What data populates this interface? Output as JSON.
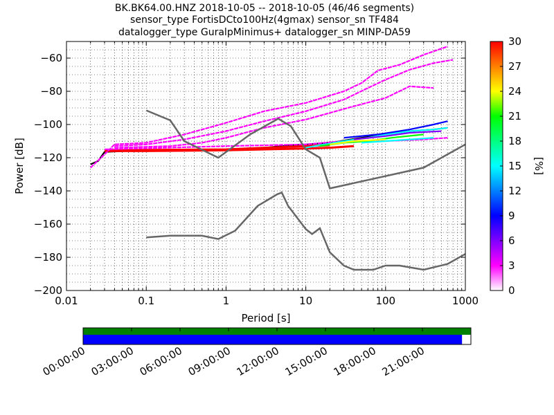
{
  "title_lines": [
    "BK.BK64.00.HNZ   2018-10-05 -- 2018-10-05  (46/46 segments)",
    "sensor_type FortisDCto100Hz(4gmax) sensor_sn TF484",
    "datalogger_type GuralpMinimus+ datalogger_sn MINP-DA59"
  ],
  "chart_data": {
    "type": "heatmap",
    "xlabel": "Period [s]",
    "ylabel": "Power [dB]",
    "x_scale": "log",
    "xlim": [
      0.01,
      1000
    ],
    "ylim": [
      -200,
      -50
    ],
    "x_ticks": [
      0.01,
      0.1,
      1,
      10,
      100,
      1000
    ],
    "x_tick_labels": [
      "0.01",
      "0.1",
      "1",
      "10",
      "100",
      "1000"
    ],
    "y_ticks": [
      -200,
      -180,
      -160,
      -140,
      -120,
      -100,
      -80,
      -60
    ],
    "y_tick_labels": [
      "−200",
      "−180",
      "−160",
      "−140",
      "−120",
      "−100",
      "−80",
      "−60"
    ],
    "grid": "dotted",
    "colorbar": {
      "label": "[%]",
      "range": [
        0,
        30
      ],
      "ticks": [
        0,
        3,
        6,
        9,
        12,
        15,
        18,
        21,
        24,
        27,
        30
      ],
      "tick_labels": [
        "0",
        "3",
        "6",
        "9",
        "12",
        "15",
        "18",
        "21",
        "24",
        "27",
        "30"
      ],
      "colors": [
        "#ffffff",
        "#ff00ff",
        "#8000ff",
        "#0000ff",
        "#0080ff",
        "#00ffff",
        "#00ff80",
        "#00ff00",
        "#ffff00",
        "#ff8000",
        "#ff0000"
      ]
    },
    "model_curves": [
      {
        "name": "",
        "color": "#666666",
        "points": [
          [
            0.1,
            -91.5
          ],
          [
            0.2,
            -97.5
          ],
          [
            0.3,
            -110
          ],
          [
            0.8,
            -120
          ],
          [
            2,
            -106
          ],
          [
            4.5,
            -96.5
          ],
          [
            6.5,
            -101
          ],
          [
            10,
            -115
          ],
          [
            15,
            -120
          ],
          [
            20,
            -138.5
          ],
          [
            300,
            -126
          ],
          [
            1000,
            -112
          ]
        ]
      },
      {
        "name": "",
        "color": "#666666",
        "points": [
          [
            0.1,
            -168
          ],
          [
            0.2,
            -167
          ],
          [
            0.5,
            -167
          ],
          [
            0.8,
            -169
          ],
          [
            1.3,
            -164
          ],
          [
            2.5,
            -149
          ],
          [
            4.4,
            -142
          ],
          [
            5,
            -141
          ],
          [
            6,
            -149
          ],
          [
            10,
            -163
          ],
          [
            12,
            -166
          ],
          [
            15,
            -162.5
          ],
          [
            20,
            -177
          ],
          [
            30,
            -185
          ],
          [
            40,
            -187.5
          ],
          [
            70,
            -187.5
          ],
          [
            100,
            -185
          ],
          [
            150,
            -185
          ],
          [
            300,
            -187.5
          ],
          [
            600,
            -184
          ],
          [
            1000,
            -178
          ]
        ]
      }
    ],
    "psd_traces": [
      {
        "color": "#000000",
        "points": [
          [
            0.02,
            -124
          ],
          [
            0.025,
            -122
          ],
          [
            0.03,
            -116.5
          ],
          [
            0.1,
            -115.5
          ],
          [
            1,
            -115
          ],
          [
            3,
            -114
          ],
          [
            5,
            -113
          ],
          [
            10,
            -112
          ],
          [
            20,
            -111
          ],
          [
            50,
            -108
          ],
          [
            100,
            -106
          ],
          [
            200,
            -104
          ],
          [
            400,
            -103
          ],
          [
            600,
            -102
          ]
        ]
      },
      {
        "color": "#ff0000",
        "points": [
          [
            0.03,
            -116
          ],
          [
            0.1,
            -116
          ],
          [
            1,
            -115.5
          ],
          [
            3,
            -115
          ],
          [
            10,
            -114.5
          ],
          [
            20,
            -114
          ],
          [
            40,
            -113
          ]
        ]
      },
      {
        "color": "#ff0000",
        "points": [
          [
            0.03,
            -115.5
          ],
          [
            1,
            -115
          ],
          [
            10,
            -113
          ],
          [
            20,
            -112.5
          ]
        ]
      },
      {
        "color": "#ff00ff",
        "points": [
          [
            0.02,
            -126
          ],
          [
            0.03,
            -118
          ],
          [
            0.04,
            -112
          ],
          [
            0.1,
            -111
          ],
          [
            0.3,
            -106
          ],
          [
            1,
            -99
          ],
          [
            3,
            -92
          ],
          [
            10,
            -87
          ],
          [
            30,
            -80
          ],
          [
            50,
            -75
          ],
          [
            80,
            -67.5
          ],
          [
            150,
            -64
          ],
          [
            300,
            -58
          ],
          [
            600,
            -53
          ]
        ]
      },
      {
        "color": "#ff00ff",
        "points": [
          [
            0.04,
            -113
          ],
          [
            0.1,
            -112
          ],
          [
            0.3,
            -109
          ],
          [
            1,
            -104
          ],
          [
            3,
            -98
          ],
          [
            10,
            -92
          ],
          [
            30,
            -85
          ],
          [
            60,
            -78
          ],
          [
            100,
            -73
          ],
          [
            200,
            -67
          ],
          [
            400,
            -63
          ],
          [
            700,
            -61
          ]
        ]
      },
      {
        "color": "#ff00ff",
        "points": [
          [
            0.04,
            -114
          ],
          [
            0.2,
            -113
          ],
          [
            0.5,
            -111
          ],
          [
            1,
            -108
          ],
          [
            3,
            -102
          ],
          [
            10,
            -97
          ],
          [
            20,
            -93
          ],
          [
            40,
            -89
          ],
          [
            100,
            -84
          ],
          [
            200,
            -77
          ],
          [
            400,
            -78
          ]
        ]
      },
      {
        "color": "#ff00ff",
        "points": [
          [
            0.03,
            -115
          ],
          [
            1,
            -113
          ],
          [
            10,
            -112
          ],
          [
            30,
            -110
          ],
          [
            100,
            -110
          ],
          [
            300,
            -109
          ],
          [
            600,
            -108
          ]
        ]
      },
      {
        "color": "#00ffff",
        "points": [
          [
            10,
            -114
          ],
          [
            30,
            -110
          ],
          [
            60,
            -108
          ],
          [
            100,
            -106
          ],
          [
            200,
            -104
          ],
          [
            400,
            -103
          ],
          [
            600,
            -102
          ]
        ]
      },
      {
        "color": "#0000ff",
        "points": [
          [
            30,
            -108
          ],
          [
            80,
            -106
          ],
          [
            200,
            -103
          ],
          [
            400,
            -100
          ],
          [
            600,
            -98
          ]
        ]
      },
      {
        "color": "#00ff00",
        "points": [
          [
            15,
            -113
          ],
          [
            30,
            -111
          ],
          [
            60,
            -110
          ],
          [
            120,
            -108
          ],
          [
            300,
            -106
          ]
        ]
      },
      {
        "color": "#ffff00",
        "points": [
          [
            20,
            -112
          ],
          [
            40,
            -110
          ],
          [
            100,
            -109
          ]
        ]
      },
      {
        "color": "#8000ff",
        "points": [
          [
            40,
            -109
          ],
          [
            100,
            -107
          ],
          [
            200,
            -105
          ],
          [
            500,
            -104
          ]
        ]
      },
      {
        "color": "#00ffff",
        "points": [
          [
            50,
            -111
          ],
          [
            100,
            -110
          ],
          [
            200,
            -109
          ],
          [
            400,
            -108
          ]
        ]
      }
    ]
  },
  "availability": {
    "labels": [
      "00:00:00",
      "03:00:00",
      "06:00:00",
      "09:00:00",
      "12:00:00",
      "15:00:00",
      "18:00:00",
      "21:00:00"
    ],
    "bars": [
      {
        "color": "#008000",
        "start_hour": 0,
        "end_hour": 24
      },
      {
        "color": "#0000ff",
        "start_hour": 0,
        "end_hour": 23.45
      }
    ]
  }
}
